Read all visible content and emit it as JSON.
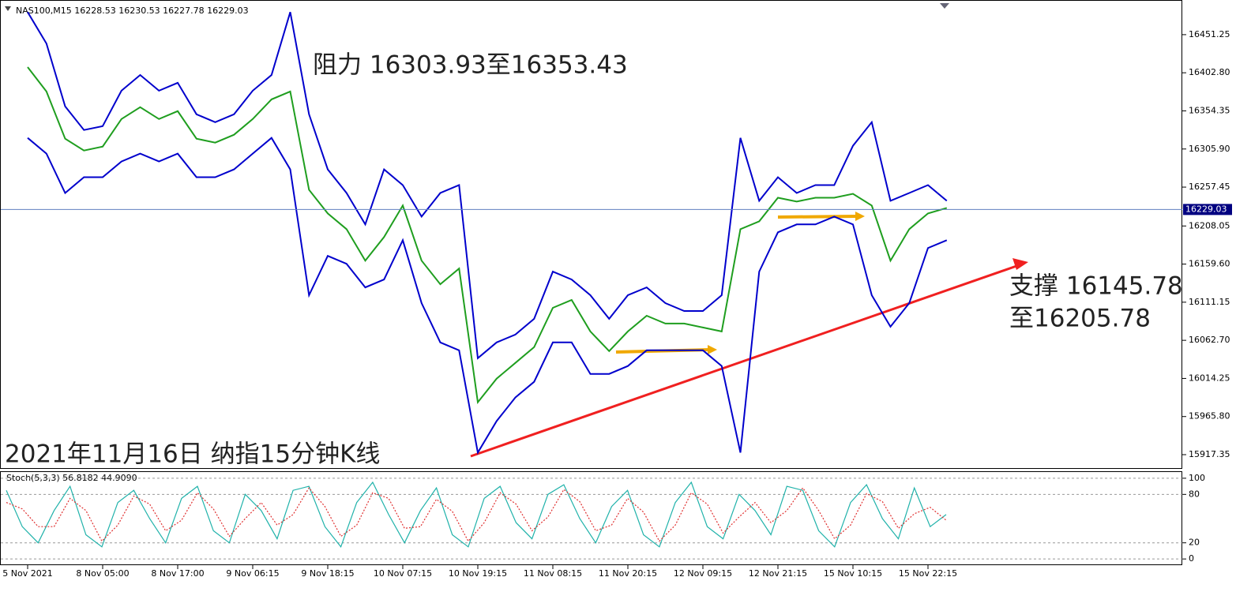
{
  "chart_data": [
    {
      "type": "line",
      "header": "NAS100,M15  16228.53 16230.53 16227.78 16229.03",
      "annotations": [
        "阻力 16303.93至16353.43",
        "支撑 16145.78",
        "至16205.78",
        "2021年11月16日 纳指15分钟K线"
      ],
      "categories": [
        "5 Nov 2021",
        null,
        null,
        null,
        "8 Nov 05:00",
        null,
        null,
        null,
        "8 Nov 17:00",
        null,
        null,
        null,
        "9 Nov 06:15",
        null,
        null,
        null,
        "9 Nov 18:15",
        null,
        null,
        null,
        "10 Nov 07:15",
        null,
        null,
        null,
        "10 Nov 19:15",
        null,
        null,
        null,
        "11 Nov 08:15",
        null,
        null,
        null,
        "11 Nov 20:15",
        null,
        null,
        null,
        "12 Nov 09:15",
        null,
        null,
        null,
        "12 Nov 21:15",
        null,
        null,
        null,
        "15 Nov 10:15",
        null,
        null,
        null,
        "15 Nov 22:15",
        null
      ],
      "series": [
        {
          "color": "#1f9e1f",
          "values": [
            16410,
            16379,
            16319,
            16304,
            16309,
            16344,
            16359,
            16344,
            16354,
            16319,
            16314,
            16324,
            16344,
            16369,
            16379,
            16254,
            16224,
            16204,
            16164,
            16194,
            16234,
            16164,
            16134,
            16154,
            15984,
            16014,
            16034,
            16054,
            16104,
            16114,
            16074,
            16049,
            16074,
            16094,
            16084,
            16084,
            16079,
            16074,
            16204,
            16214,
            16244,
            16239,
            16244,
            16244,
            16249,
            16234,
            16164,
            16204,
            16224,
            16231
          ]
        },
        {
          "color": "#0000cc",
          "values": [
            16480,
            16440,
            16360,
            16330,
            16335,
            16380,
            16400,
            16380,
            16390,
            16350,
            16340,
            16350,
            16380,
            16400,
            16480,
            16350,
            16280,
            16250,
            16210,
            16280,
            16260,
            16220,
            16250,
            16260,
            16040,
            16060,
            16070,
            16090,
            16150,
            16140,
            16120,
            16090,
            16120,
            16130,
            16110,
            16100,
            16100,
            16120,
            16320,
            16240,
            16270,
            16250,
            16260,
            16260,
            16310,
            16340,
            16240,
            16250,
            16260,
            16240
          ]
        },
        {
          "color": "#0000cc",
          "values": [
            16320,
            16300,
            16250,
            16270,
            16270,
            16290,
            16300,
            16290,
            16300,
            16270,
            16270,
            16280,
            16300,
            16320,
            16280,
            16120,
            16170,
            16160,
            16130,
            16140,
            16190,
            16110,
            16060,
            16050,
            15920,
            15960,
            15990,
            16010,
            16060,
            16060,
            16020,
            16020,
            16030,
            16050,
            16050,
            16050,
            16050,
            16030,
            15920,
            16150,
            16200,
            16210,
            16210,
            16220,
            16210,
            16120,
            16080,
            16110,
            16180,
            16190
          ]
        }
      ],
      "current_price": 16229.03,
      "ylim": [
        15900.3,
        16494.3
      ],
      "yticks": [
        16451.25,
        {
          "value": 16402.8,
          "label": "16402.80"
        },
        16354.35,
        {
          "value": 16305.9,
          "label": "16305.90"
        },
        16257.45,
        16208.05,
        {
          "value": 16159.6,
          "label": "16159.60"
        },
        16111.15,
        {
          "value": 16062.7,
          "label": "16062.70"
        },
        16014.25,
        {
          "value": 15965.8,
          "label": "15965.80"
        },
        15917.35
      ]
    },
    {
      "type": "line",
      "header": "Stoch(5,3,3) 56.8182 44.9090",
      "series": [
        {
          "color": "#20b2aa",
          "values": [
            85,
            40,
            20,
            60,
            90,
            30,
            15,
            70,
            85,
            50,
            20,
            75,
            90,
            35,
            20,
            80,
            60,
            25,
            85,
            90,
            40,
            15,
            70,
            95,
            55,
            20,
            60,
            88,
            30,
            15,
            75,
            90,
            45,
            25,
            80,
            92,
            50,
            20,
            65,
            85,
            30,
            15,
            70,
            95,
            40,
            25,
            80,
            60,
            30,
            90,
            85,
            35,
            15,
            70,
            92,
            50,
            25,
            88,
            40,
            55
          ]
        },
        {
          "color": "#e03030",
          "dashed": true,
          "values": [
            70,
            62,
            40,
            40,
            75,
            60,
            22,
            42,
            78,
            68,
            35,
            48,
            82,
            62,
            28,
            50,
            70,
            42,
            55,
            88,
            65,
            28,
            42,
            82,
            75,
            38,
            40,
            74,
            59,
            22,
            45,
            82,
            68,
            35,
            52,
            86,
            71,
            35,
            42,
            75,
            58,
            22,
            42,
            82,
            68,
            32,
            52,
            70,
            45,
            60,
            88,
            60,
            25,
            42,
            81,
            71,
            38,
            56,
            64,
            48
          ]
        }
      ],
      "ylim": [
        -6.7,
        107.7
      ],
      "yticks": [
        0,
        20,
        80,
        100
      ]
    }
  ]
}
